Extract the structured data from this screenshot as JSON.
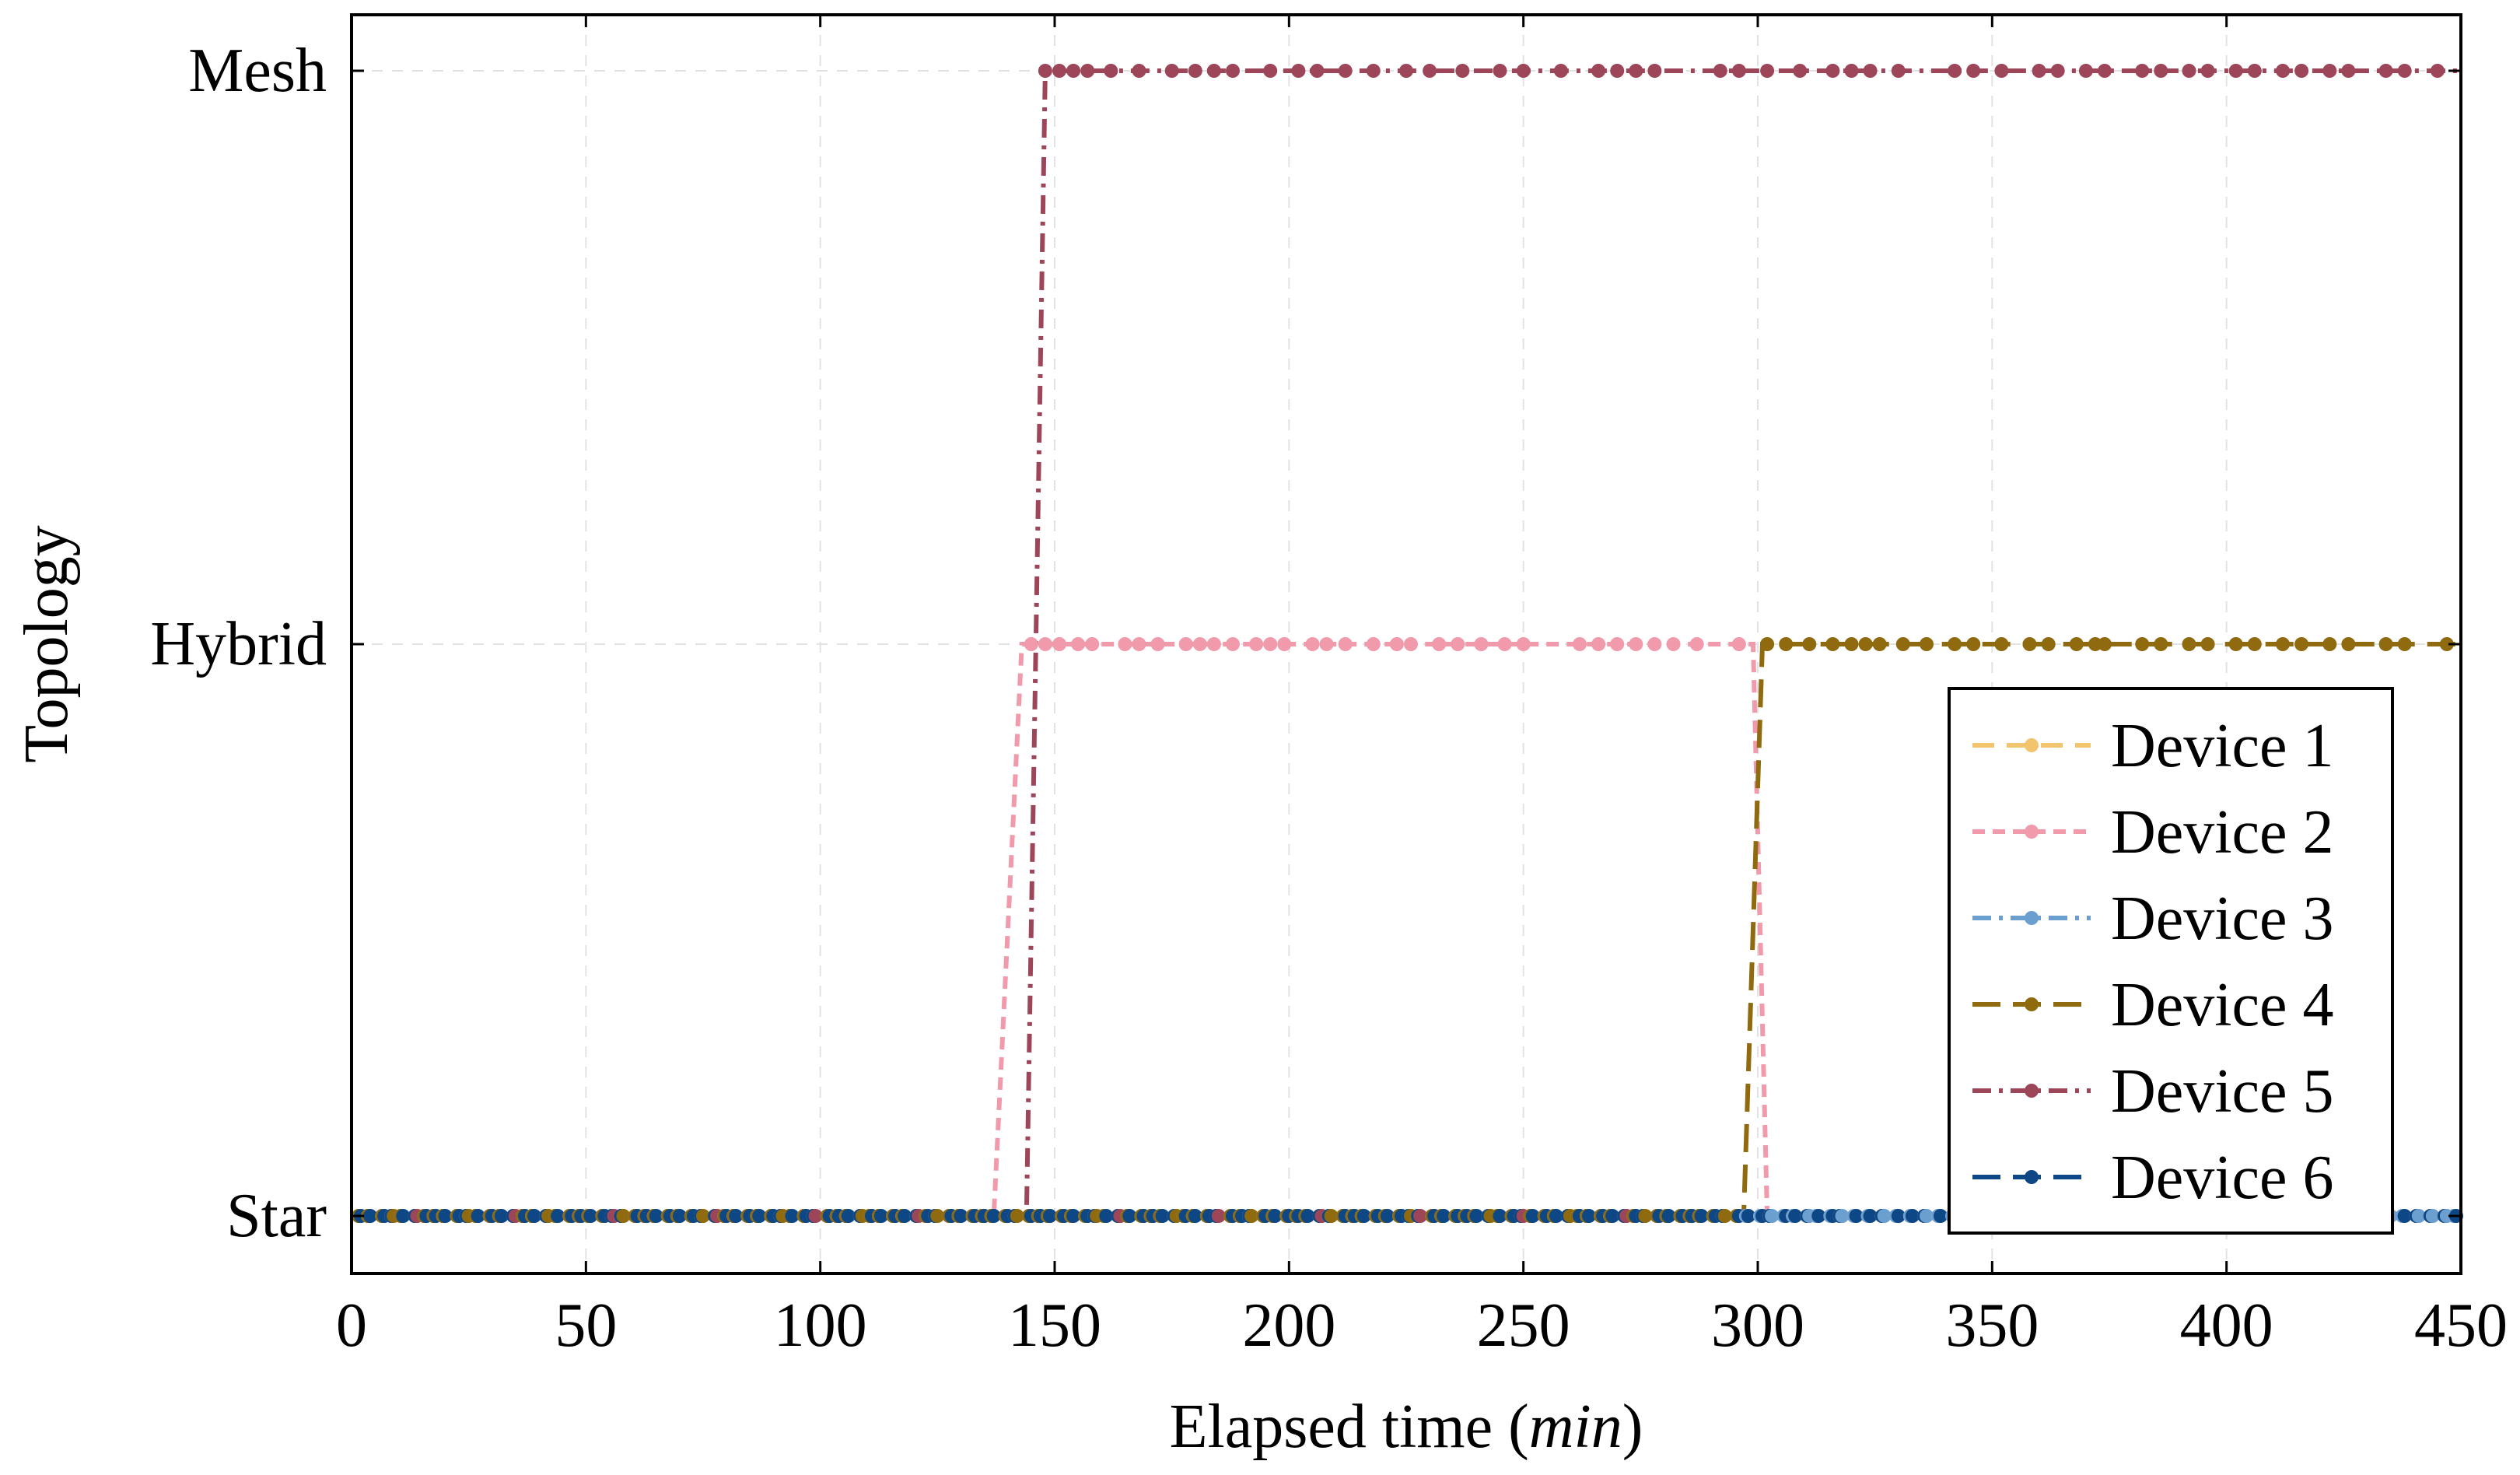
{
  "chart_data": {
    "type": "line",
    "title": "",
    "xlabel": "Elapsed time",
    "xlabel_unit": "min",
    "ylabel": "Topology",
    "xlim": [
      0,
      450
    ],
    "x_ticks": [
      0,
      50,
      100,
      150,
      200,
      250,
      300,
      350,
      400,
      450
    ],
    "y_categories": [
      "Star",
      "Hybrid",
      "Mesh"
    ],
    "grid": true,
    "legend_position": "bottom-right",
    "series": [
      {
        "name": "Device 1",
        "color": "#f2c46d",
        "dash": "dashed",
        "transitions": [
          {
            "from": 0,
            "to": 450,
            "level": "Star"
          }
        ],
        "samples": [
          {
            "x": 0,
            "y": "Star"
          },
          {
            "x": 450,
            "y": "Star"
          }
        ]
      },
      {
        "name": "Device 2",
        "color": "#f09aac",
        "dash": "densely-dashed",
        "transitions": [
          {
            "from": 0,
            "to": 137,
            "level": "Star"
          },
          {
            "from": 143,
            "to": 299,
            "level": "Hybrid"
          },
          {
            "from": 302,
            "to": 450,
            "level": "Star"
          }
        ],
        "samples": [
          {
            "x": 0,
            "y": "Star"
          },
          {
            "x": 137,
            "y": "Star"
          },
          {
            "x": 143,
            "y": "Hybrid"
          },
          {
            "x": 299,
            "y": "Hybrid"
          },
          {
            "x": 302,
            "y": "Star"
          },
          {
            "x": 450,
            "y": "Star"
          }
        ]
      },
      {
        "name": "Device 3",
        "color": "#6a9fd0",
        "dash": "dash-dot",
        "transitions": [
          {
            "from": 0,
            "to": 450,
            "level": "Star"
          }
        ],
        "samples": [
          {
            "x": 0,
            "y": "Star"
          },
          {
            "x": 450,
            "y": "Star"
          }
        ]
      },
      {
        "name": "Device 4",
        "color": "#8f6a0f",
        "dash": "long-dashed",
        "transitions": [
          {
            "from": 0,
            "to": 297,
            "level": "Star"
          },
          {
            "from": 301,
            "to": 450,
            "level": "Hybrid"
          }
        ],
        "samples": [
          {
            "x": 0,
            "y": "Star"
          },
          {
            "x": 297,
            "y": "Star"
          },
          {
            "x": 301,
            "y": "Hybrid"
          },
          {
            "x": 450,
            "y": "Hybrid"
          }
        ]
      },
      {
        "name": "Device 5",
        "color": "#9e4659",
        "dash": "dash-dot",
        "transitions": [
          {
            "from": 0,
            "to": 144,
            "level": "Star"
          },
          {
            "from": 148,
            "to": 450,
            "level": "Mesh"
          }
        ],
        "samples": [
          {
            "x": 0,
            "y": "Star"
          },
          {
            "x": 144,
            "y": "Star"
          },
          {
            "x": 148,
            "y": "Mesh"
          },
          {
            "x": 450,
            "y": "Mesh"
          }
        ]
      },
      {
        "name": "Device 6",
        "color": "#0e4785",
        "dash": "long-dashed",
        "transitions": [
          {
            "from": 0,
            "to": 450,
            "level": "Star"
          }
        ],
        "samples": [
          {
            "x": 0,
            "y": "Star"
          },
          {
            "x": 450,
            "y": "Star"
          }
        ]
      }
    ],
    "marker_times": {
      "star_region": [
        2,
        4,
        7,
        9,
        11,
        14,
        16,
        18,
        20,
        23,
        25,
        27,
        30,
        32,
        35,
        37,
        39,
        42,
        44,
        47,
        49,
        51,
        54,
        56,
        58,
        61,
        63,
        65,
        68,
        70,
        73,
        75,
        78,
        80,
        82,
        85,
        87,
        90,
        92,
        94,
        97,
        99,
        102,
        104,
        106,
        109,
        111,
        113,
        116,
        118,
        121,
        123,
        125,
        128,
        130,
        133,
        135,
        137,
        140,
        142,
        145,
        147,
        149,
        152,
        154,
        157,
        159,
        161,
        164,
        166,
        169,
        171,
        173,
        176,
        178,
        180,
        183,
        185,
        188,
        190,
        192,
        195,
        197,
        200,
        202,
        204,
        207,
        209,
        212,
        214,
        216,
        219,
        221,
        224,
        226,
        228,
        231,
        233,
        236,
        238,
        240,
        243,
        245,
        248,
        250,
        252,
        255,
        257,
        260,
        262,
        264,
        267,
        269,
        272,
        274,
        276,
        279,
        281,
        284,
        286,
        288,
        291,
        293,
        296,
        298,
        301,
        303,
        306,
        308,
        311,
        313,
        316,
        318,
        321,
        324,
        327,
        330,
        333,
        336,
        339,
        342,
        345,
        348,
        351,
        354,
        357,
        360,
        363,
        366,
        369,
        372,
        375,
        378,
        381,
        384,
        387,
        390,
        393,
        396,
        399,
        402,
        405,
        408,
        411,
        414,
        417,
        420,
        423,
        426,
        429,
        432,
        435,
        438,
        441,
        444,
        447,
        449
      ],
      "device2_hybrid": [
        145,
        148,
        151,
        155,
        158,
        165,
        168,
        172,
        178,
        181,
        184,
        188,
        193,
        196,
        199,
        205,
        208,
        212,
        218,
        223,
        226,
        232,
        236,
        241,
        246,
        250,
        262,
        266,
        270,
        274,
        278,
        282,
        287,
        296
      ],
      "device4_hybrid": [
        302,
        306,
        311,
        316,
        320,
        323,
        326,
        331,
        336,
        342,
        346,
        352,
        358,
        362,
        368,
        372,
        374,
        382,
        386,
        392,
        396,
        402,
        406,
        412,
        416,
        422,
        426,
        434,
        438,
        447
      ],
      "device5_mesh": [
        148,
        151,
        154,
        157,
        162,
        168,
        175,
        180,
        184,
        188,
        196,
        202,
        206,
        212,
        218,
        225,
        230,
        237,
        245,
        250,
        258,
        266,
        270,
        274,
        278,
        292,
        296,
        302,
        309,
        316,
        320,
        324,
        330,
        342,
        346,
        352,
        360,
        364,
        370,
        374,
        382,
        386,
        392,
        396,
        402,
        406,
        412,
        416,
        422,
        426,
        434,
        438,
        445
      ]
    }
  }
}
